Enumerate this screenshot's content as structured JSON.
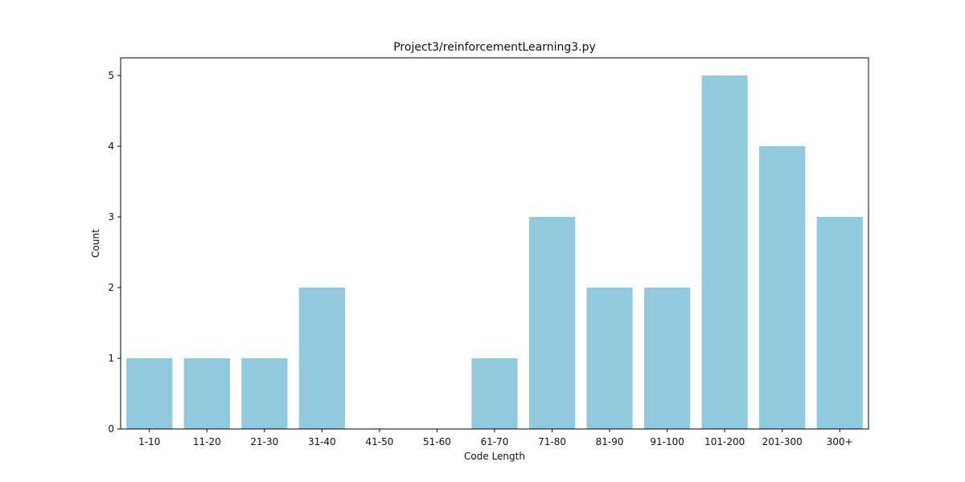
{
  "chart_data": {
    "type": "bar",
    "title": "Project3/reinforcementLearning3.py",
    "xlabel": "Code Length",
    "ylabel": "Count",
    "categories": [
      "1-10",
      "11-20",
      "21-30",
      "31-40",
      "41-50",
      "51-60",
      "61-70",
      "71-80",
      "81-90",
      "91-100",
      "101-200",
      "201-300",
      "300+"
    ],
    "values": [
      1,
      1,
      1,
      2,
      0,
      0,
      1,
      3,
      2,
      2,
      5,
      4,
      3
    ],
    "ylim": [
      0,
      5.25
    ],
    "yticks": [
      "0",
      "1",
      "2",
      "3",
      "4",
      "5"
    ],
    "bar_color": "#92c9df",
    "grid": false,
    "legend": "none"
  }
}
